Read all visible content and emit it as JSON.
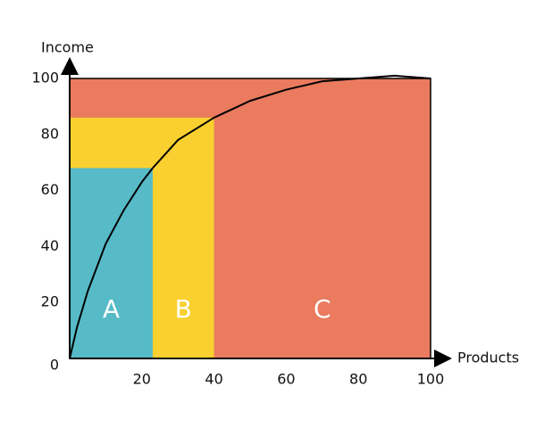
{
  "chart_data": {
    "type": "abc",
    "x_label": "Products",
    "y_label": "Income",
    "xlim": [
      0,
      100
    ],
    "ylim": [
      0,
      100
    ],
    "xticks": [
      20,
      40,
      60,
      80,
      100
    ],
    "yticks": [
      0,
      20,
      40,
      60,
      80,
      100
    ],
    "segments": [
      {
        "name": "C",
        "color": "#ea7b5f",
        "x_end": 100,
        "value": 100
      },
      {
        "name": "B",
        "color": "#f9d030",
        "x_end": 40,
        "value": 86
      },
      {
        "name": "A",
        "color": "#56bbc7",
        "x_end": 23,
        "value": 68
      }
    ],
    "curve": {
      "color": "#000000",
      "x": [
        0,
        2,
        5,
        10,
        15,
        20,
        23,
        30,
        40,
        50,
        60,
        70,
        80,
        90,
        100
      ],
      "y": [
        0,
        11,
        24,
        41,
        53,
        63,
        68,
        78,
        86,
        92,
        96,
        99,
        100,
        101,
        100
      ]
    }
  }
}
